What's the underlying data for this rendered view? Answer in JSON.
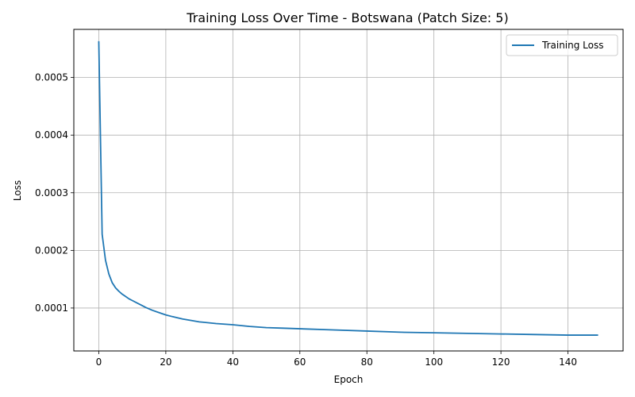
{
  "chart_data": {
    "type": "line",
    "title": "Training Loss Over Time - Botswana (Patch Size: 5)",
    "xlabel": "Epoch",
    "ylabel": "Loss",
    "xlim": [
      -7.45,
      156.45
    ],
    "ylim": [
      2.55e-05,
      0.0005835
    ],
    "xticks": [
      0,
      20,
      40,
      60,
      80,
      100,
      120,
      140
    ],
    "xtick_labels": [
      "0",
      "20",
      "40",
      "60",
      "80",
      "100",
      "120",
      "140"
    ],
    "yticks": [
      0.0001,
      0.0002,
      0.0003,
      0.0004,
      0.0005
    ],
    "ytick_labels": [
      "0.0001",
      "0.0002",
      "0.0003",
      "0.0004",
      "0.0005"
    ],
    "grid": true,
    "legend_position": "top-right",
    "series": [
      {
        "name": "Training Loss",
        "color": "#1f77b4",
        "x": [
          0,
          1,
          2,
          3,
          4,
          5,
          6,
          7,
          8,
          9,
          10,
          12,
          14,
          16,
          18,
          20,
          22,
          25,
          30,
          35,
          40,
          45,
          50,
          55,
          60,
          70,
          80,
          90,
          100,
          110,
          120,
          130,
          140,
          149
        ],
        "values": [
          0.000563,
          0.000228,
          0.000183,
          0.000159,
          0.000144,
          0.000135,
          0.000129,
          0.000124,
          0.00012,
          0.000116,
          0.000113,
          0.000107,
          0.000101,
          9.6e-05,
          9.2e-05,
          8.8e-05,
          8.5e-05,
          8.1e-05,
          7.6e-05,
          7.3e-05,
          7.1e-05,
          6.8e-05,
          6.6e-05,
          6.5e-05,
          6.4e-05,
          6.2e-05,
          6e-05,
          5.8e-05,
          5.7e-05,
          5.6e-05,
          5.5e-05,
          5.4e-05,
          5.3e-05,
          5.3e-05
        ]
      }
    ]
  }
}
